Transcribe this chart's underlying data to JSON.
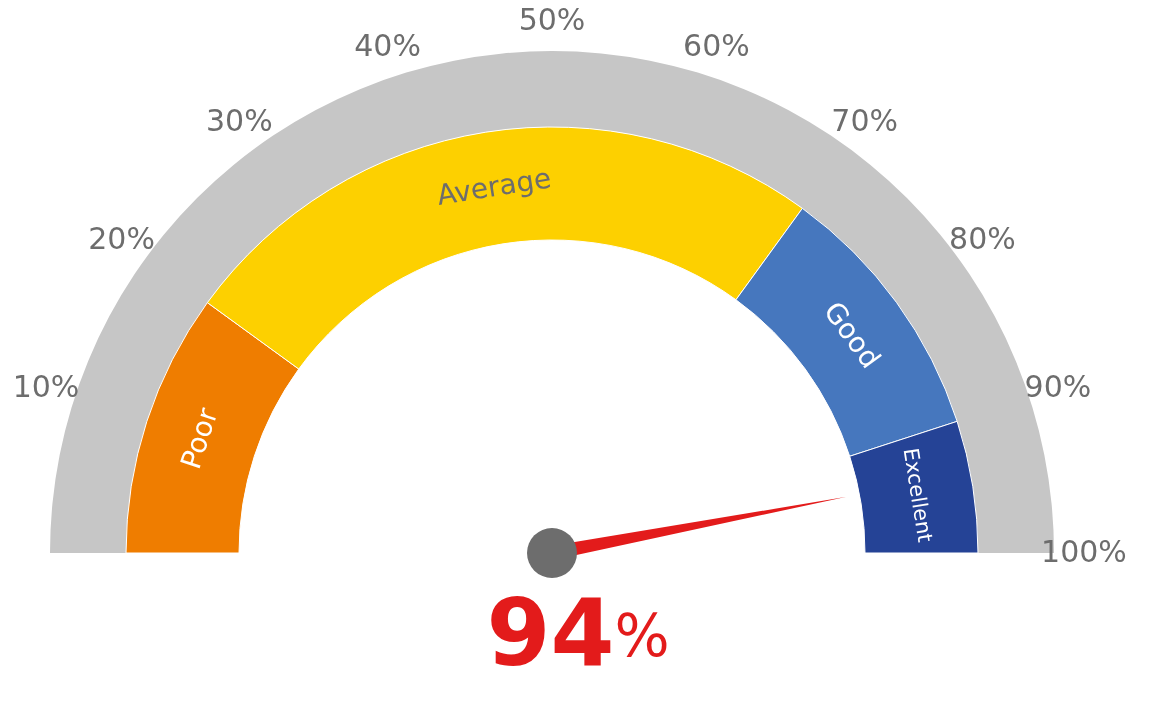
{
  "chart_data": {
    "type": "donut",
    "categories": [
      "Poor",
      "Average",
      "Good",
      "Excellent"
    ],
    "values": [
      20,
      50,
      20,
      10
    ],
    "colors": [
      "#ef7d00",
      "#fdd000",
      "#4677be",
      "#254396"
    ],
    "needle": "Excellent",
    "annotations": [
      "10%",
      "20%",
      "30%",
      "40%",
      "50%",
      "60%",
      "70%",
      "80%",
      "90%",
      "100%",
      "94%"
    ]
  }
}
